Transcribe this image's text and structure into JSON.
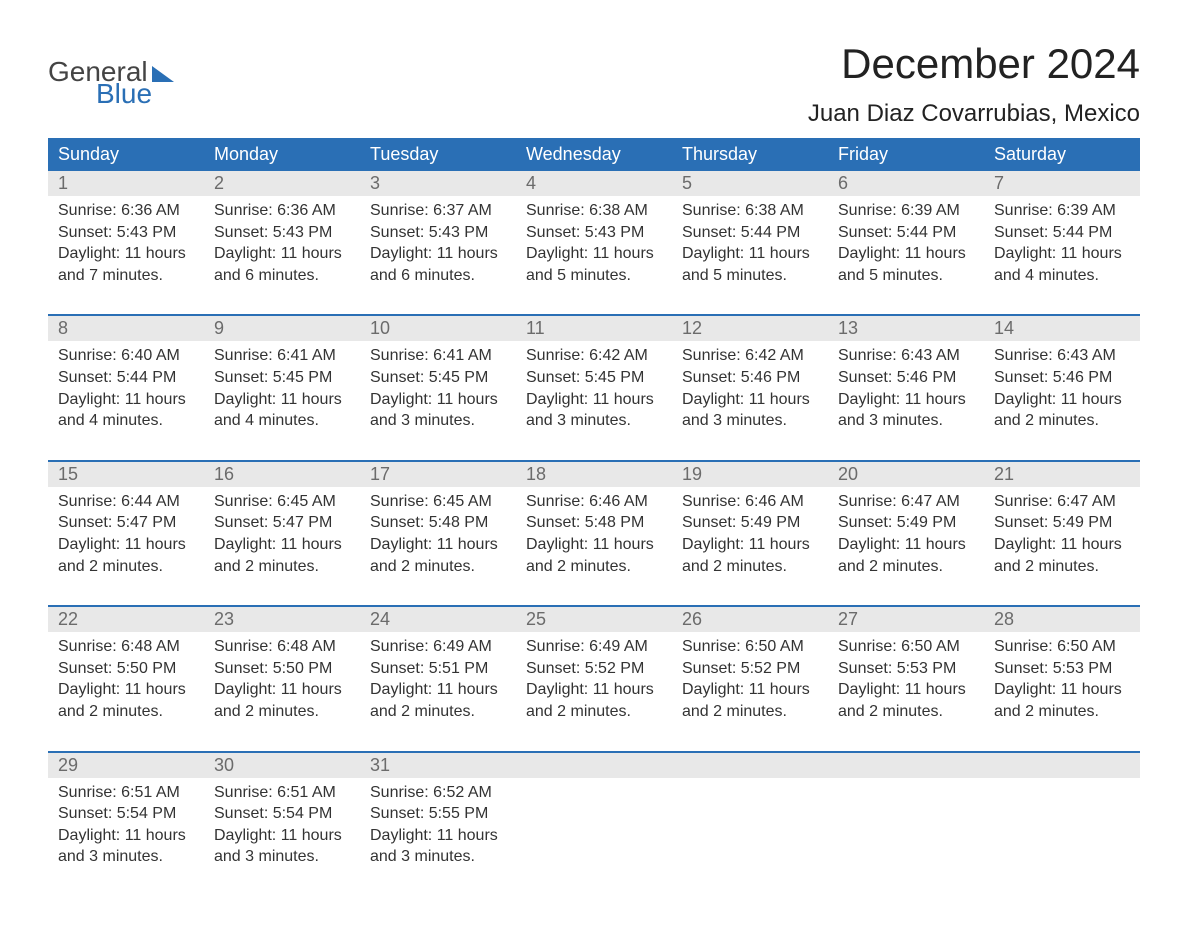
{
  "logo": {
    "line1": "General",
    "line2": "Blue"
  },
  "title": "December 2024",
  "location": "Juan Diaz Covarrubias, Mexico",
  "accent_color": "#2a6fb5",
  "daynum_bg": "#e8e8e8",
  "text_color": "#333333",
  "fonts": {
    "title_pt": 42,
    "location_pt": 24,
    "header_pt": 18,
    "body_pt": 16
  },
  "day_headers": [
    "Sunday",
    "Monday",
    "Tuesday",
    "Wednesday",
    "Thursday",
    "Friday",
    "Saturday"
  ],
  "weeks": [
    [
      {
        "n": "1",
        "sr": "Sunrise: 6:36 AM",
        "ss": "Sunset: 5:43 PM",
        "d1": "Daylight: 11 hours",
        "d2": "and 7 minutes."
      },
      {
        "n": "2",
        "sr": "Sunrise: 6:36 AM",
        "ss": "Sunset: 5:43 PM",
        "d1": "Daylight: 11 hours",
        "d2": "and 6 minutes."
      },
      {
        "n": "3",
        "sr": "Sunrise: 6:37 AM",
        "ss": "Sunset: 5:43 PM",
        "d1": "Daylight: 11 hours",
        "d2": "and 6 minutes."
      },
      {
        "n": "4",
        "sr": "Sunrise: 6:38 AM",
        "ss": "Sunset: 5:43 PM",
        "d1": "Daylight: 11 hours",
        "d2": "and 5 minutes."
      },
      {
        "n": "5",
        "sr": "Sunrise: 6:38 AM",
        "ss": "Sunset: 5:44 PM",
        "d1": "Daylight: 11 hours",
        "d2": "and 5 minutes."
      },
      {
        "n": "6",
        "sr": "Sunrise: 6:39 AM",
        "ss": "Sunset: 5:44 PM",
        "d1": "Daylight: 11 hours",
        "d2": "and 5 minutes."
      },
      {
        "n": "7",
        "sr": "Sunrise: 6:39 AM",
        "ss": "Sunset: 5:44 PM",
        "d1": "Daylight: 11 hours",
        "d2": "and 4 minutes."
      }
    ],
    [
      {
        "n": "8",
        "sr": "Sunrise: 6:40 AM",
        "ss": "Sunset: 5:44 PM",
        "d1": "Daylight: 11 hours",
        "d2": "and 4 minutes."
      },
      {
        "n": "9",
        "sr": "Sunrise: 6:41 AM",
        "ss": "Sunset: 5:45 PM",
        "d1": "Daylight: 11 hours",
        "d2": "and 4 minutes."
      },
      {
        "n": "10",
        "sr": "Sunrise: 6:41 AM",
        "ss": "Sunset: 5:45 PM",
        "d1": "Daylight: 11 hours",
        "d2": "and 3 minutes."
      },
      {
        "n": "11",
        "sr": "Sunrise: 6:42 AM",
        "ss": "Sunset: 5:45 PM",
        "d1": "Daylight: 11 hours",
        "d2": "and 3 minutes."
      },
      {
        "n": "12",
        "sr": "Sunrise: 6:42 AM",
        "ss": "Sunset: 5:46 PM",
        "d1": "Daylight: 11 hours",
        "d2": "and 3 minutes."
      },
      {
        "n": "13",
        "sr": "Sunrise: 6:43 AM",
        "ss": "Sunset: 5:46 PM",
        "d1": "Daylight: 11 hours",
        "d2": "and 3 minutes."
      },
      {
        "n": "14",
        "sr": "Sunrise: 6:43 AM",
        "ss": "Sunset: 5:46 PM",
        "d1": "Daylight: 11 hours",
        "d2": "and 2 minutes."
      }
    ],
    [
      {
        "n": "15",
        "sr": "Sunrise: 6:44 AM",
        "ss": "Sunset: 5:47 PM",
        "d1": "Daylight: 11 hours",
        "d2": "and 2 minutes."
      },
      {
        "n": "16",
        "sr": "Sunrise: 6:45 AM",
        "ss": "Sunset: 5:47 PM",
        "d1": "Daylight: 11 hours",
        "d2": "and 2 minutes."
      },
      {
        "n": "17",
        "sr": "Sunrise: 6:45 AM",
        "ss": "Sunset: 5:48 PM",
        "d1": "Daylight: 11 hours",
        "d2": "and 2 minutes."
      },
      {
        "n": "18",
        "sr": "Sunrise: 6:46 AM",
        "ss": "Sunset: 5:48 PM",
        "d1": "Daylight: 11 hours",
        "d2": "and 2 minutes."
      },
      {
        "n": "19",
        "sr": "Sunrise: 6:46 AM",
        "ss": "Sunset: 5:49 PM",
        "d1": "Daylight: 11 hours",
        "d2": "and 2 minutes."
      },
      {
        "n": "20",
        "sr": "Sunrise: 6:47 AM",
        "ss": "Sunset: 5:49 PM",
        "d1": "Daylight: 11 hours",
        "d2": "and 2 minutes."
      },
      {
        "n": "21",
        "sr": "Sunrise: 6:47 AM",
        "ss": "Sunset: 5:49 PM",
        "d1": "Daylight: 11 hours",
        "d2": "and 2 minutes."
      }
    ],
    [
      {
        "n": "22",
        "sr": "Sunrise: 6:48 AM",
        "ss": "Sunset: 5:50 PM",
        "d1": "Daylight: 11 hours",
        "d2": "and 2 minutes."
      },
      {
        "n": "23",
        "sr": "Sunrise: 6:48 AM",
        "ss": "Sunset: 5:50 PM",
        "d1": "Daylight: 11 hours",
        "d2": "and 2 minutes."
      },
      {
        "n": "24",
        "sr": "Sunrise: 6:49 AM",
        "ss": "Sunset: 5:51 PM",
        "d1": "Daylight: 11 hours",
        "d2": "and 2 minutes."
      },
      {
        "n": "25",
        "sr": "Sunrise: 6:49 AM",
        "ss": "Sunset: 5:52 PM",
        "d1": "Daylight: 11 hours",
        "d2": "and 2 minutes."
      },
      {
        "n": "26",
        "sr": "Sunrise: 6:50 AM",
        "ss": "Sunset: 5:52 PM",
        "d1": "Daylight: 11 hours",
        "d2": "and 2 minutes."
      },
      {
        "n": "27",
        "sr": "Sunrise: 6:50 AM",
        "ss": "Sunset: 5:53 PM",
        "d1": "Daylight: 11 hours",
        "d2": "and 2 minutes."
      },
      {
        "n": "28",
        "sr": "Sunrise: 6:50 AM",
        "ss": "Sunset: 5:53 PM",
        "d1": "Daylight: 11 hours",
        "d2": "and 2 minutes."
      }
    ],
    [
      {
        "n": "29",
        "sr": "Sunrise: 6:51 AM",
        "ss": "Sunset: 5:54 PM",
        "d1": "Daylight: 11 hours",
        "d2": "and 3 minutes."
      },
      {
        "n": "30",
        "sr": "Sunrise: 6:51 AM",
        "ss": "Sunset: 5:54 PM",
        "d1": "Daylight: 11 hours",
        "d2": "and 3 minutes."
      },
      {
        "n": "31",
        "sr": "Sunrise: 6:52 AM",
        "ss": "Sunset: 5:55 PM",
        "d1": "Daylight: 11 hours",
        "d2": "and 3 minutes."
      },
      null,
      null,
      null,
      null
    ]
  ]
}
